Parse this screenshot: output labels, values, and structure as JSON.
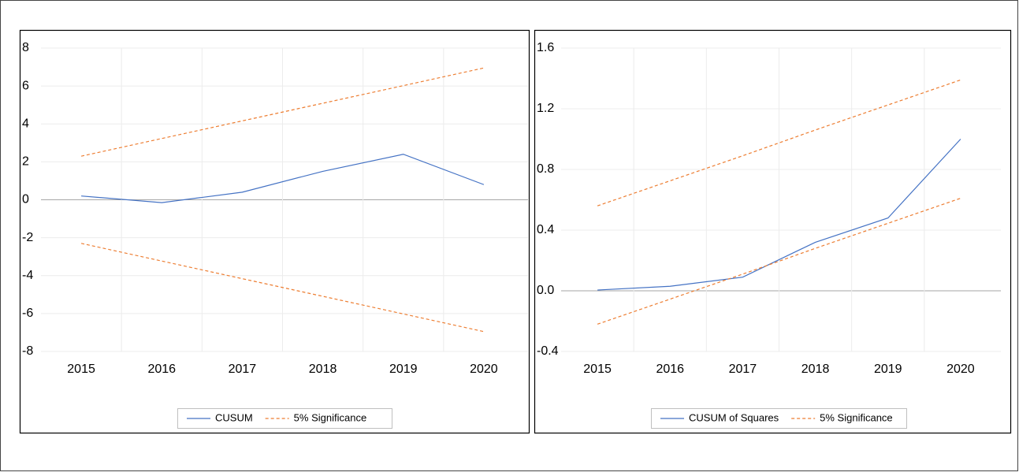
{
  "chart_data": [
    {
      "type": "line",
      "categories": [
        "2015",
        "2016",
        "2017",
        "2018",
        "2019",
        "2020"
      ],
      "ylim": [
        -8,
        8
      ],
      "yticks": [
        -8,
        -6,
        -4,
        -2,
        0,
        2,
        4,
        6,
        8
      ],
      "grid": true,
      "series": [
        {
          "name": "CUSUM",
          "color": "#4472c4",
          "values": [
            0.2,
            -0.15,
            0.4,
            1.5,
            2.4,
            0.8
          ]
        },
        {
          "name": "5% Significance",
          "color": "#ed7d31",
          "dashed": true,
          "values": [
            2.3,
            3.23,
            4.16,
            5.09,
            6.02,
            6.95
          ],
          "lower_values": [
            -2.3,
            -3.23,
            -4.16,
            -5.09,
            -6.02,
            -6.95
          ]
        }
      ]
    },
    {
      "type": "line",
      "categories": [
        "2015",
        "2016",
        "2017",
        "2018",
        "2019",
        "2020"
      ],
      "ylim": [
        -0.4,
        1.6
      ],
      "yticks": [
        -0.4,
        {
          "value": 0,
          "label": "0.0"
        },
        0.4,
        0.8,
        1.2,
        1.6
      ],
      "grid": true,
      "series": [
        {
          "name": "CUSUM of Squares",
          "color": "#4472c4",
          "values": [
            0.005,
            0.03,
            0.09,
            0.32,
            0.48,
            1.0
          ]
        },
        {
          "name": "5% Significance",
          "color": "#ed7d31",
          "dashed": true,
          "values": [
            0.56,
            0.725,
            0.89,
            1.06,
            1.225,
            1.39
          ],
          "lower_values": [
            -0.22,
            -0.055,
            0.11,
            0.28,
            0.445,
            0.61
          ]
        }
      ]
    }
  ]
}
